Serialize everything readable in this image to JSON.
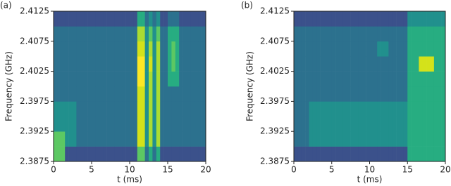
{
  "chart_data": [
    {
      "type": "heatmap",
      "label": "(a)",
      "x_label": "t (ms)",
      "y_label": "Frequency (GHz)",
      "xlim": [
        0,
        20
      ],
      "xticks": [
        0,
        5,
        10,
        15,
        20
      ],
      "ylim": [
        2.3875,
        2.4125
      ],
      "yticks": [
        2.3875,
        2.3925,
        2.3975,
        2.4025,
        2.4075,
        2.4125
      ],
      "zlim": [
        0,
        9
      ],
      "colormap": [
        "#440154",
        "#472c7a",
        "#3b518b",
        "#2c718e",
        "#21908d",
        "#27ad81",
        "#5cc863",
        "#aadc32",
        "#d4e21a",
        "#fde725"
      ],
      "z": [
        [
          6,
          6,
          6,
          2,
          2,
          2,
          2,
          2,
          2,
          2,
          2,
          2,
          2,
          2,
          2,
          2,
          2,
          2,
          2,
          2,
          2,
          2,
          6,
          6,
          3,
          5,
          3,
          5,
          2,
          2,
          2,
          2,
          2,
          2,
          2,
          2,
          2,
          2,
          2,
          2
        ],
        [
          6,
          6,
          6,
          4,
          4,
          4,
          3,
          3,
          3,
          3,
          3,
          3,
          3,
          3,
          3,
          3,
          3,
          3,
          3,
          3,
          3,
          3,
          8,
          8,
          4,
          7,
          4,
          7,
          3,
          3,
          3,
          3,
          3,
          3,
          3,
          3,
          3,
          3,
          3,
          3
        ],
        [
          4,
          4,
          4,
          4,
          4,
          4,
          3,
          3,
          3,
          3,
          3,
          3,
          3,
          3,
          3,
          3,
          3,
          3,
          3,
          3,
          3,
          3,
          8,
          8,
          4,
          7,
          4,
          7,
          3,
          3,
          3,
          3,
          3,
          3,
          3,
          3,
          3,
          3,
          3,
          3
        ],
        [
          4,
          4,
          4,
          4,
          4,
          4,
          3,
          3,
          3,
          3,
          3,
          3,
          3,
          3,
          3,
          3,
          3,
          3,
          3,
          3,
          3,
          3,
          8,
          8,
          4,
          7,
          4,
          7,
          3,
          3,
          3,
          3,
          3,
          3,
          3,
          3,
          3,
          3,
          3,
          3
        ],
        [
          3,
          3,
          3,
          3,
          3,
          3,
          3,
          3,
          3,
          3,
          3,
          3,
          3,
          3,
          3,
          3,
          3,
          3,
          3,
          3,
          3,
          3,
          8,
          8,
          4,
          7,
          4,
          7,
          3,
          3,
          3,
          3,
          3,
          3,
          3,
          3,
          3,
          3,
          3,
          3
        ],
        [
          3,
          3,
          3,
          3,
          3,
          3,
          3,
          3,
          3,
          3,
          3,
          3,
          3,
          3,
          3,
          3,
          3,
          3,
          3,
          3,
          3,
          3,
          9,
          9,
          4,
          7,
          4,
          7,
          3,
          3,
          5,
          5,
          5,
          3,
          3,
          3,
          3,
          3,
          3,
          3
        ],
        [
          3,
          3,
          3,
          3,
          3,
          3,
          3,
          3,
          3,
          3,
          3,
          3,
          3,
          3,
          3,
          3,
          3,
          3,
          3,
          3,
          3,
          3,
          9,
          9,
          4,
          8,
          4,
          7,
          3,
          3,
          5,
          6,
          5,
          3,
          3,
          3,
          3,
          3,
          3,
          3
        ],
        [
          3,
          3,
          3,
          3,
          3,
          3,
          3,
          3,
          3,
          3,
          3,
          3,
          3,
          3,
          3,
          3,
          3,
          3,
          3,
          3,
          3,
          3,
          8,
          8,
          4,
          7,
          4,
          7,
          3,
          3,
          5,
          6,
          5,
          3,
          3,
          3,
          3,
          3,
          3,
          3
        ],
        [
          3,
          3,
          3,
          3,
          3,
          3,
          3,
          3,
          3,
          3,
          3,
          3,
          3,
          3,
          3,
          3,
          3,
          3,
          3,
          3,
          3,
          3,
          7,
          7,
          4,
          6,
          4,
          6,
          3,
          3,
          5,
          5,
          5,
          3,
          3,
          3,
          3,
          3,
          3,
          3
        ],
        [
          2,
          2,
          2,
          2,
          2,
          2,
          2,
          2,
          2,
          2,
          2,
          2,
          2,
          2,
          2,
          2,
          2,
          2,
          2,
          2,
          2,
          2,
          5,
          5,
          3,
          4,
          3,
          4,
          2,
          2,
          3,
          3,
          3,
          2,
          2,
          2,
          2,
          2,
          2,
          2
        ]
      ]
    },
    {
      "type": "heatmap",
      "label": "(b)",
      "x_label": "t (ms)",
      "y_label": "Frequency (GHz)",
      "xlim": [
        0,
        20
      ],
      "xticks": [
        0,
        5,
        10,
        15,
        20
      ],
      "ylim": [
        2.3875,
        2.4125
      ],
      "yticks": [
        2.3875,
        2.3925,
        2.3975,
        2.4025,
        2.4075,
        2.4125
      ],
      "zlim": [
        0,
        9
      ],
      "colormap": [
        "#440154",
        "#472c7a",
        "#3b518b",
        "#2c718e",
        "#21908d",
        "#27ad81",
        "#5cc863",
        "#aadc32",
        "#d4e21a",
        "#fde725"
      ],
      "z": [
        [
          2,
          2,
          2,
          2,
          2,
          2,
          2,
          2,
          2,
          2,
          2,
          2,
          2,
          2,
          2,
          2,
          2,
          2,
          2,
          2,
          2,
          2,
          2,
          2,
          2,
          2,
          2,
          2,
          2,
          2,
          5,
          5,
          5,
          5,
          5,
          5,
          5,
          5,
          5,
          5
        ],
        [
          3,
          3,
          3,
          3,
          4,
          4,
          4,
          4,
          4,
          4,
          4,
          4,
          4,
          4,
          4,
          4,
          4,
          4,
          4,
          4,
          4,
          4,
          4,
          4,
          4,
          4,
          4,
          4,
          4,
          4,
          5,
          5,
          5,
          5,
          5,
          5,
          5,
          5,
          5,
          5
        ],
        [
          3,
          3,
          3,
          3,
          4,
          4,
          4,
          4,
          4,
          4,
          4,
          4,
          4,
          4,
          4,
          4,
          4,
          4,
          4,
          4,
          4,
          4,
          4,
          4,
          4,
          4,
          4,
          4,
          4,
          4,
          5,
          5,
          5,
          5,
          5,
          5,
          5,
          5,
          5,
          5
        ],
        [
          3,
          3,
          3,
          3,
          4,
          4,
          4,
          4,
          4,
          4,
          4,
          4,
          4,
          4,
          4,
          4,
          4,
          4,
          4,
          4,
          4,
          4,
          4,
          4,
          4,
          4,
          4,
          4,
          4,
          4,
          5,
          5,
          5,
          5,
          5,
          5,
          5,
          5,
          5,
          5
        ],
        [
          3,
          3,
          3,
          3,
          3,
          3,
          3,
          3,
          3,
          3,
          3,
          3,
          3,
          3,
          3,
          3,
          3,
          3,
          3,
          3,
          3,
          3,
          3,
          3,
          3,
          3,
          3,
          3,
          3,
          3,
          5,
          5,
          5,
          5,
          5,
          5,
          5,
          5,
          5,
          5
        ],
        [
          3,
          3,
          3,
          3,
          3,
          3,
          3,
          3,
          3,
          3,
          3,
          3,
          3,
          3,
          3,
          3,
          3,
          3,
          3,
          3,
          3,
          3,
          3,
          3,
          3,
          3,
          3,
          3,
          3,
          3,
          5,
          5,
          5,
          5,
          5,
          5,
          5,
          5,
          5,
          5
        ],
        [
          3,
          3,
          3,
          3,
          3,
          3,
          3,
          3,
          3,
          3,
          3,
          3,
          3,
          3,
          3,
          3,
          3,
          3,
          3,
          3,
          3,
          3,
          3,
          3,
          3,
          3,
          3,
          3,
          3,
          3,
          5,
          5,
          5,
          8,
          8,
          8,
          8,
          5,
          5,
          5
        ],
        [
          3,
          3,
          3,
          3,
          3,
          3,
          3,
          3,
          3,
          3,
          3,
          3,
          3,
          3,
          3,
          3,
          3,
          3,
          3,
          3,
          3,
          3,
          4,
          4,
          4,
          3,
          3,
          3,
          3,
          3,
          5,
          5,
          5,
          5,
          5,
          5,
          5,
          5,
          5,
          5
        ],
        [
          3,
          3,
          3,
          3,
          3,
          3,
          3,
          3,
          3,
          3,
          3,
          3,
          3,
          3,
          3,
          3,
          3,
          3,
          3,
          3,
          3,
          3,
          3,
          3,
          3,
          3,
          3,
          3,
          3,
          3,
          5,
          5,
          5,
          5,
          5,
          5,
          5,
          5,
          5,
          5
        ],
        [
          2,
          2,
          2,
          2,
          2,
          2,
          2,
          2,
          2,
          2,
          2,
          2,
          2,
          2,
          2,
          2,
          2,
          2,
          2,
          2,
          2,
          2,
          2,
          2,
          2,
          2,
          2,
          2,
          2,
          2,
          4,
          4,
          4,
          4,
          4,
          4,
          4,
          4,
          4,
          4
        ]
      ]
    }
  ]
}
